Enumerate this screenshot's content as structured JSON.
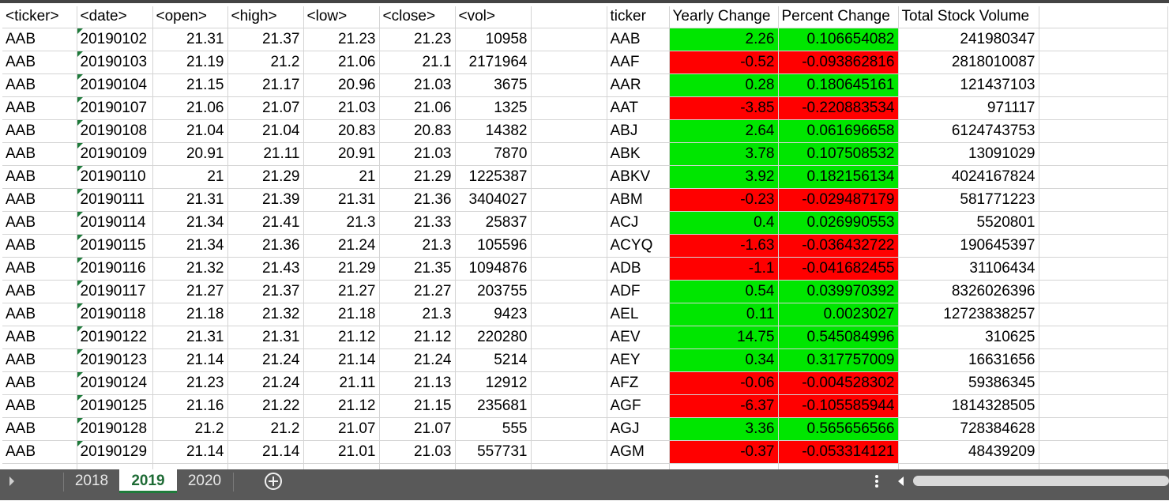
{
  "headers": [
    "<ticker>",
    "<date>",
    "<open>",
    "<high>",
    "<low>",
    "<close>",
    "<vol>",
    "",
    "ticker",
    "Yearly Change",
    "Percent Change",
    "Total Stock Volume",
    ""
  ],
  "rows": [
    {
      "raw": [
        "AAB",
        "20190102",
        "21.31",
        "21.37",
        "21.23",
        "21.23",
        "10958"
      ],
      "summary": [
        "AAB",
        "2.26",
        "0.106654082",
        "241980347"
      ],
      "status": "positive"
    },
    {
      "raw": [
        "AAB",
        "20190103",
        "21.19",
        "21.2",
        "21.06",
        "21.1",
        "2171964"
      ],
      "summary": [
        "AAF",
        "-0.52",
        "-0.093862816",
        "2818010087"
      ],
      "status": "negative"
    },
    {
      "raw": [
        "AAB",
        "20190104",
        "21.15",
        "21.17",
        "20.96",
        "21.03",
        "3675"
      ],
      "summary": [
        "AAR",
        "0.28",
        "0.180645161",
        "121437103"
      ],
      "status": "positive"
    },
    {
      "raw": [
        "AAB",
        "20190107",
        "21.06",
        "21.07",
        "21.03",
        "21.06",
        "1325"
      ],
      "summary": [
        "AAT",
        "-3.85",
        "-0.220883534",
        "971117"
      ],
      "status": "negative"
    },
    {
      "raw": [
        "AAB",
        "20190108",
        "21.04",
        "21.04",
        "20.83",
        "20.83",
        "14382"
      ],
      "summary": [
        "ABJ",
        "2.64",
        "0.061696658",
        "6124743753"
      ],
      "status": "positive"
    },
    {
      "raw": [
        "AAB",
        "20190109",
        "20.91",
        "21.11",
        "20.91",
        "21.03",
        "7870"
      ],
      "summary": [
        "ABK",
        "3.78",
        "0.107508532",
        "13091029"
      ],
      "status": "positive"
    },
    {
      "raw": [
        "AAB",
        "20190110",
        "21",
        "21.29",
        "21",
        "21.29",
        "1225387"
      ],
      "summary": [
        "ABKV",
        "3.92",
        "0.182156134",
        "4024167824"
      ],
      "status": "positive"
    },
    {
      "raw": [
        "AAB",
        "20190111",
        "21.31",
        "21.39",
        "21.31",
        "21.36",
        "3404027"
      ],
      "summary": [
        "ABM",
        "-0.23",
        "-0.029487179",
        "581771223"
      ],
      "status": "negative"
    },
    {
      "raw": [
        "AAB",
        "20190114",
        "21.34",
        "21.41",
        "21.3",
        "21.33",
        "25837"
      ],
      "summary": [
        "ACJ",
        "0.4",
        "0.026990553",
        "5520801"
      ],
      "status": "positive"
    },
    {
      "raw": [
        "AAB",
        "20190115",
        "21.34",
        "21.36",
        "21.24",
        "21.3",
        "105596"
      ],
      "summary": [
        "ACYQ",
        "-1.63",
        "-0.036432722",
        "190645397"
      ],
      "status": "negative"
    },
    {
      "raw": [
        "AAB",
        "20190116",
        "21.32",
        "21.43",
        "21.29",
        "21.35",
        "1094876"
      ],
      "summary": [
        "ADB",
        "-1.1",
        "-0.041682455",
        "31106434"
      ],
      "status": "negative"
    },
    {
      "raw": [
        "AAB",
        "20190117",
        "21.27",
        "21.37",
        "21.27",
        "21.27",
        "203755"
      ],
      "summary": [
        "ADF",
        "0.54",
        "0.039970392",
        "8326026396"
      ],
      "status": "positive"
    },
    {
      "raw": [
        "AAB",
        "20190118",
        "21.18",
        "21.32",
        "21.18",
        "21.3",
        "9423"
      ],
      "summary": [
        "AEL",
        "0.11",
        "0.0023027",
        "12723838257"
      ],
      "status": "positive"
    },
    {
      "raw": [
        "AAB",
        "20190122",
        "21.31",
        "21.31",
        "21.12",
        "21.12",
        "220280"
      ],
      "summary": [
        "AEV",
        "14.75",
        "0.545084996",
        "310625"
      ],
      "status": "positive"
    },
    {
      "raw": [
        "AAB",
        "20190123",
        "21.14",
        "21.24",
        "21.14",
        "21.24",
        "5214"
      ],
      "summary": [
        "AEY",
        "0.34",
        "0.317757009",
        "16631656"
      ],
      "status": "positive"
    },
    {
      "raw": [
        "AAB",
        "20190124",
        "21.23",
        "21.24",
        "21.11",
        "21.13",
        "12912"
      ],
      "summary": [
        "AFZ",
        "-0.06",
        "-0.004528302",
        "59386345"
      ],
      "status": "negative"
    },
    {
      "raw": [
        "AAB",
        "20190125",
        "21.16",
        "21.22",
        "21.12",
        "21.15",
        "235681"
      ],
      "summary": [
        "AGF",
        "-6.37",
        "-0.105585944",
        "1814328505"
      ],
      "status": "negative"
    },
    {
      "raw": [
        "AAB",
        "20190128",
        "21.2",
        "21.2",
        "21.07",
        "21.07",
        "555"
      ],
      "summary": [
        "AGJ",
        "3.36",
        "0.565656566",
        "728384628"
      ],
      "status": "positive"
    },
    {
      "raw": [
        "AAB",
        "20190129",
        "21.14",
        "21.14",
        "21.01",
        "21.03",
        "557731"
      ],
      "summary": [
        "AGM",
        "-0.37",
        "-0.053314121",
        "48439209"
      ],
      "status": "negative"
    }
  ],
  "tabs": [
    {
      "label": "2018",
      "active": false
    },
    {
      "label": "2019",
      "active": true
    },
    {
      "label": "2020",
      "active": false
    }
  ],
  "icons": {
    "prev_sheet": "triangle-right-icon",
    "add_sheet": "plus-circle-icon",
    "more": "vertical-ellipsis-icon",
    "scroll_left": "triangle-left-icon"
  },
  "colors": {
    "positive": "#00e600",
    "negative": "#ff0000",
    "active_tab": "#1e6b35",
    "tab_bar": "#595959"
  }
}
